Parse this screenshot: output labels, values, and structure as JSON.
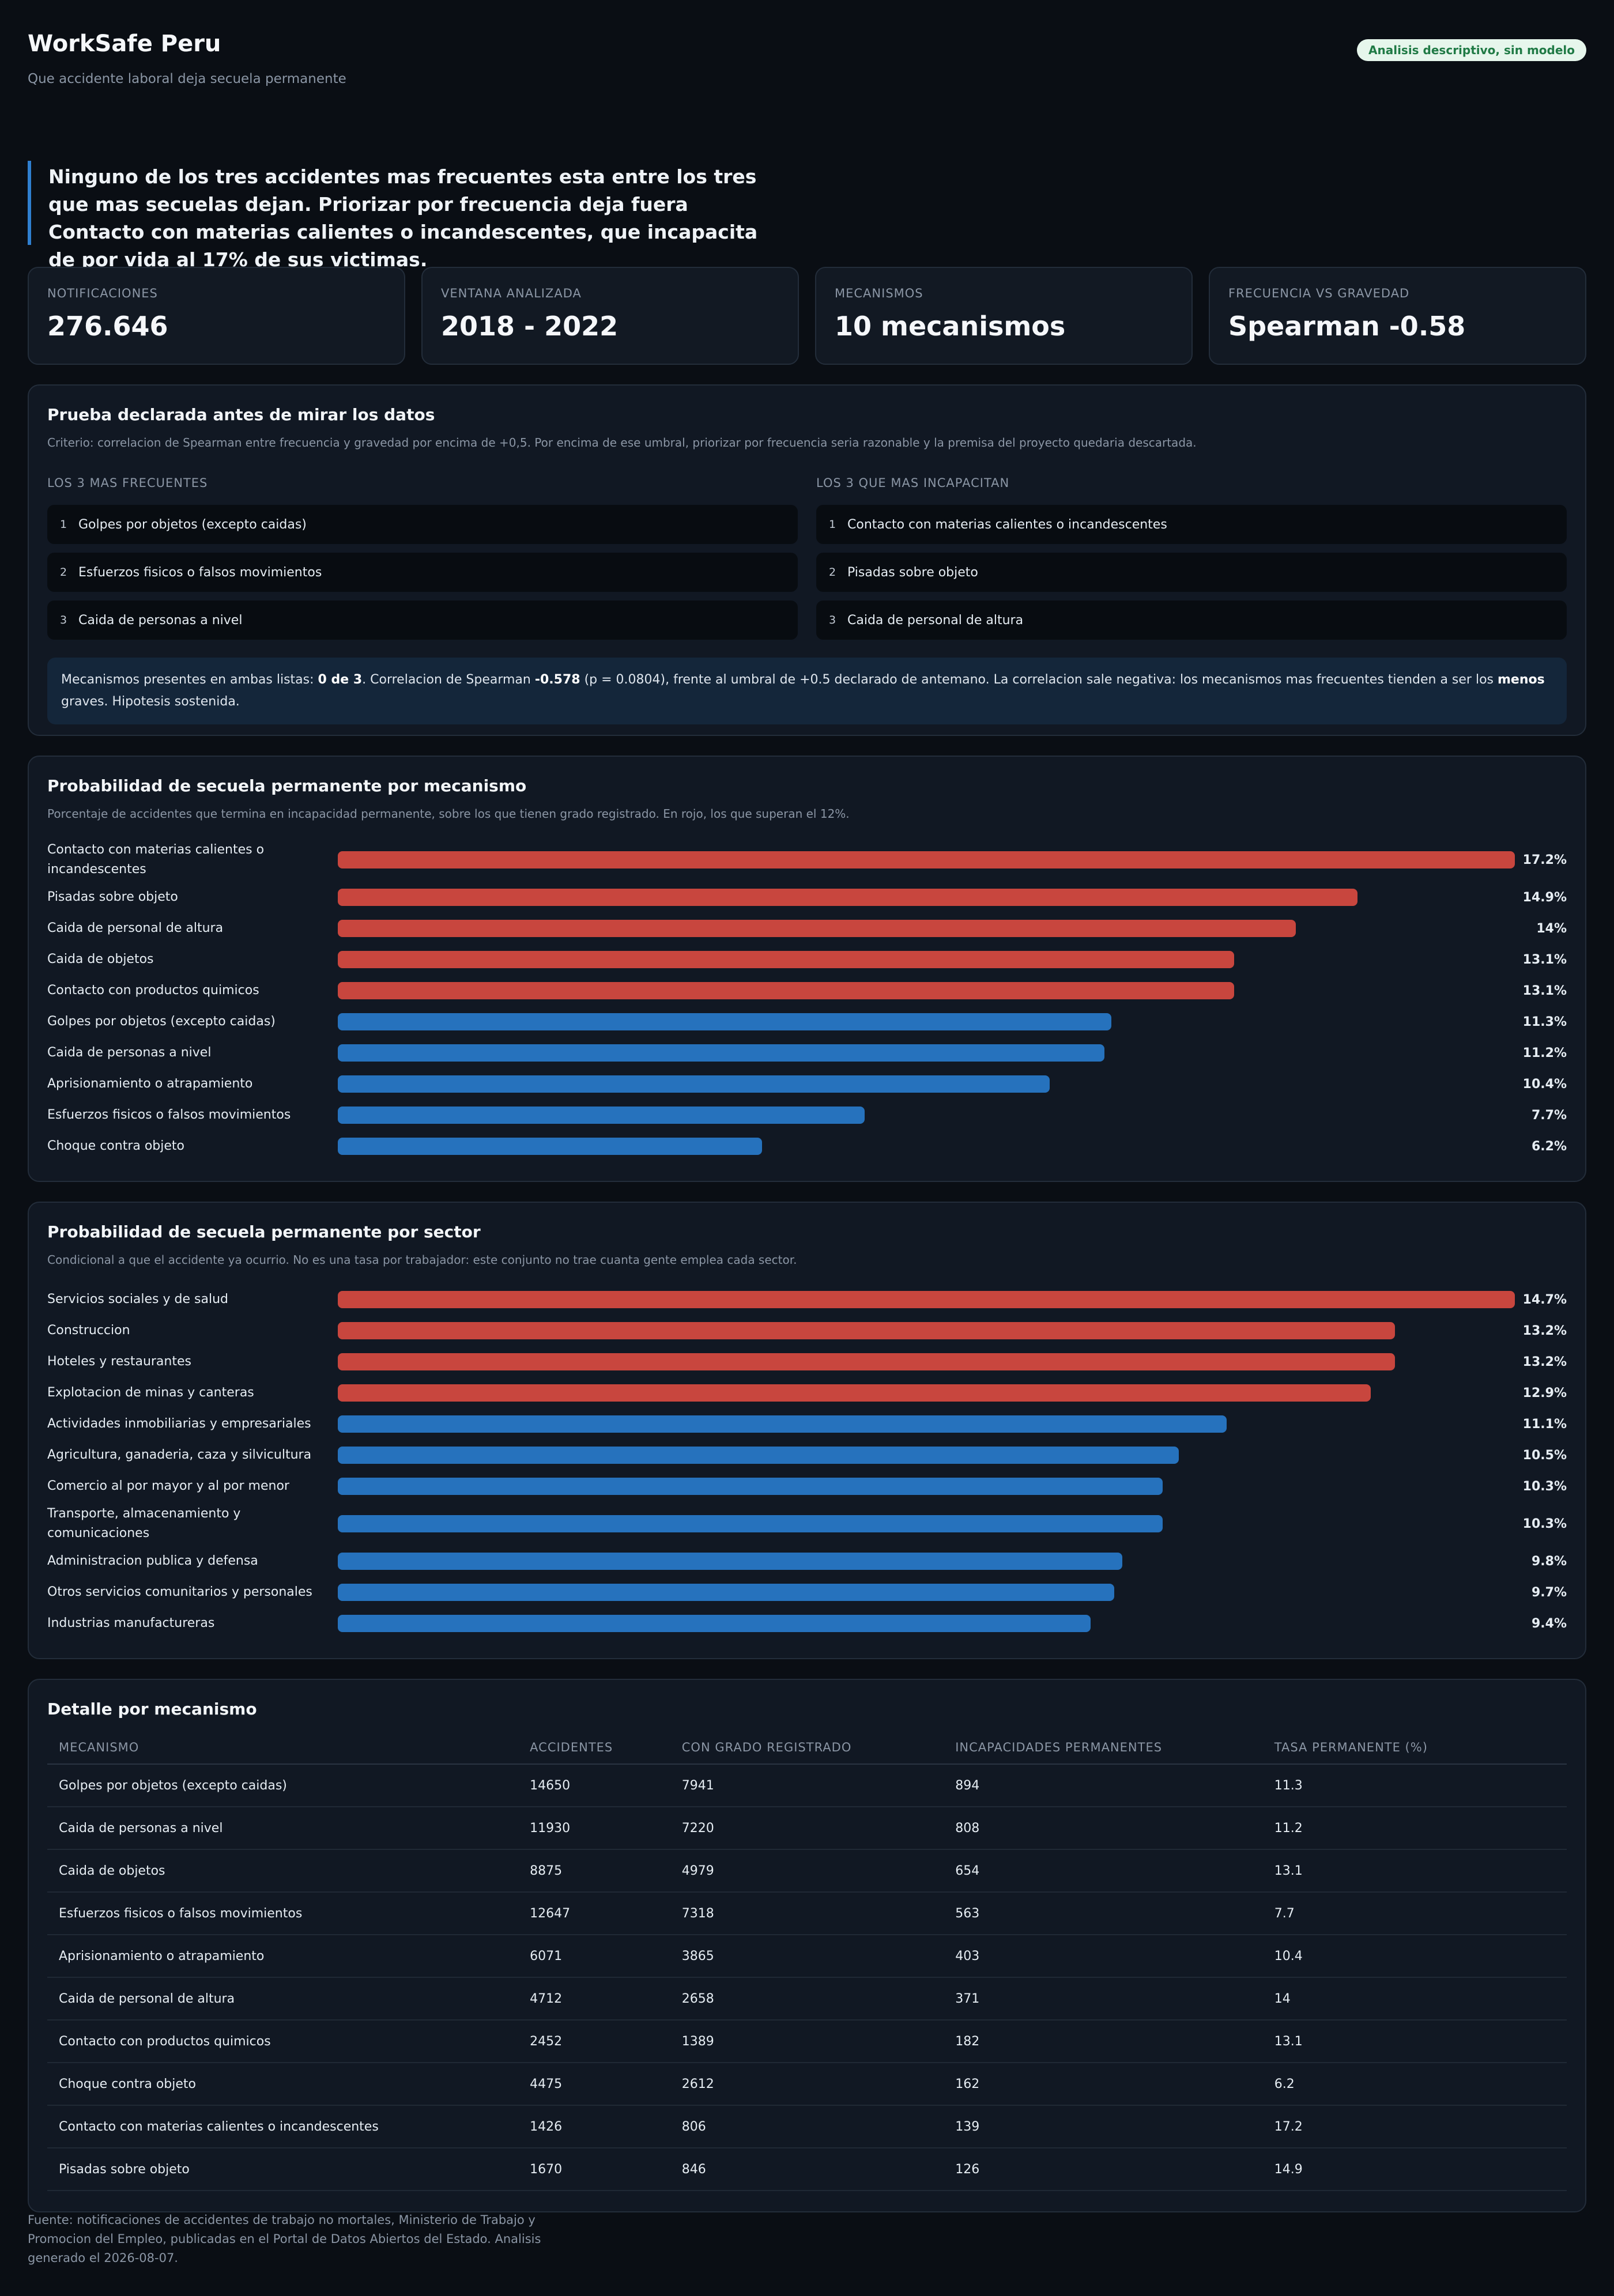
{
  "header": {
    "brand": "WorkSafe Peru",
    "tagline": "Que accidente laboral deja secuela permanente",
    "badge": "Analisis descriptivo, sin modelo"
  },
  "headline": "Ninguno de los tres accidentes mas frecuentes esta entre los tres que mas secuelas dejan. Priorizar por frecuencia deja fuera Contacto con materias calientes o incandescentes, que incapacita de por vida al 17% de sus victimas.",
  "cards": [
    {
      "label": "NOTIFICACIONES",
      "value": "276.646"
    },
    {
      "label": "VENTANA ANALIZADA",
      "value": "2018 - 2022"
    },
    {
      "label": "MECANISMOS",
      "value": "10 mecanismos"
    },
    {
      "label": "FRECUENCIA VS GRAVEDAD",
      "value": "Spearman -0.58"
    }
  ],
  "hypothesis": {
    "title": "Prueba declarada antes de mirar los datos",
    "subtitle": "Criterio: correlacion de Spearman entre frecuencia y gravedad por encima de +0,5. Por encima de ese umbral, priorizar por frecuencia seria razonable y la premisa del proyecto quedaria descartada.",
    "frequent_head": "LOS 3 MAS FRECUENTES",
    "frequent": [
      {
        "num": "1",
        "label": "Golpes por objetos (excepto caidas)"
      },
      {
        "num": "2",
        "label": "Esfuerzos fisicos o falsos movimientos"
      },
      {
        "num": "3",
        "label": "Caida de personas a nivel"
      }
    ],
    "severe_head": "LOS 3 QUE MAS INCAPACITAN",
    "severe": [
      {
        "num": "1",
        "label": "Contacto con materias calientes o incandescentes"
      },
      {
        "num": "2",
        "label": "Pisadas sobre objeto"
      },
      {
        "num": "3",
        "label": "Caida de personal de altura"
      }
    ],
    "result": {
      "t1": "Mecanismos presentes en ambas listas: ",
      "b1": "0 de 3",
      "t2": ". Correlacion de Spearman ",
      "b2": "-0.578",
      "t3": " (p = 0.0804), frente al umbral de +0.5 declarado de antemano. La correlacion sale negativa: los mecanismos mas frecuentes tienden a ser los ",
      "b3": "menos",
      "t4": " graves. Hipotesis sostenida."
    }
  },
  "colors": {
    "above": "#c8463e",
    "below": "#2672bd"
  },
  "chart_data": [
    {
      "type": "bar",
      "orientation": "horizontal",
      "title": "Probabilidad de secuela permanente por mecanismo",
      "subtitle": "Porcentaje de accidentes que termina en incapacidad permanente, sobre los que tienen grado registrado. En rojo, los que superan el 12%.",
      "threshold": 12,
      "categories": [
        "Contacto con materias calientes o incandescentes",
        "Pisadas sobre objeto",
        "Caida de personal de altura",
        "Caida de objetos",
        "Contacto con productos quimicos",
        "Golpes por objetos (excepto caidas)",
        "Caida de personas a nivel",
        "Aprisionamiento o atrapamiento",
        "Esfuerzos fisicos o falsos movimientos",
        "Choque contra objeto"
      ],
      "values": [
        17.2,
        14.9,
        14,
        13.1,
        13.1,
        11.3,
        11.2,
        10.4,
        7.7,
        6.2
      ],
      "labels": [
        "17.2%",
        "14.9%",
        "14%",
        "13.1%",
        "13.1%",
        "11.3%",
        "11.2%",
        "10.4%",
        "7.7%",
        "6.2%"
      ]
    },
    {
      "type": "bar",
      "orientation": "horizontal",
      "title": "Probabilidad de secuela permanente por sector",
      "subtitle": "Condicional a que el accidente ya ocurrio. No es una tasa por trabajador: este conjunto no trae cuanta gente emplea cada sector.",
      "threshold": 12,
      "categories": [
        "Servicios sociales y de salud",
        "Construccion",
        "Hoteles y restaurantes",
        "Explotacion de minas y canteras",
        "Actividades inmobiliarias y empresariales",
        "Agricultura, ganaderia, caza y silvicultura",
        "Comercio al por mayor y al por menor",
        "Transporte, almacenamiento y comunicaciones",
        "Administracion publica y defensa",
        "Otros servicios comunitarios y personales",
        "Industrias manufactureras"
      ],
      "values": [
        14.7,
        13.2,
        13.2,
        12.9,
        11.1,
        10.5,
        10.3,
        10.3,
        9.8,
        9.7,
        9.4
      ],
      "labels": [
        "14.7%",
        "13.2%",
        "13.2%",
        "12.9%",
        "11.1%",
        "10.5%",
        "10.3%",
        "10.3%",
        "9.8%",
        "9.7%",
        "9.4%"
      ]
    },
    {
      "type": "table",
      "title": "Detalle por mecanismo",
      "columns": [
        "MECANISMO",
        "ACCIDENTES",
        "CON GRADO REGISTRADO",
        "INCAPACIDADES PERMANENTES",
        "TASA PERMANENTE (%)"
      ],
      "rows": [
        [
          "Golpes por objetos (excepto caidas)",
          "14650",
          "7941",
          "894",
          "11.3"
        ],
        [
          "Caida de personas a nivel",
          "11930",
          "7220",
          "808",
          "11.2"
        ],
        [
          "Caida de objetos",
          "8875",
          "4979",
          "654",
          "13.1"
        ],
        [
          "Esfuerzos fisicos o falsos movimientos",
          "12647",
          "7318",
          "563",
          "7.7"
        ],
        [
          "Aprisionamiento o atrapamiento",
          "6071",
          "3865",
          "403",
          "10.4"
        ],
        [
          "Caida de personal de altura",
          "4712",
          "2658",
          "371",
          "14"
        ],
        [
          "Contacto con productos quimicos",
          "2452",
          "1389",
          "182",
          "13.1"
        ],
        [
          "Choque contra objeto",
          "4475",
          "2612",
          "162",
          "6.2"
        ],
        [
          "Contacto con materias calientes o incandescentes",
          "1426",
          "806",
          "139",
          "17.2"
        ],
        [
          "Pisadas sobre objeto",
          "1670",
          "846",
          "126",
          "14.9"
        ]
      ]
    }
  ],
  "footer": "Fuente: notificaciones de accidentes de trabajo no mortales, Ministerio de Trabajo y Promocion del Empleo, publicadas en el Portal de Datos Abiertos del Estado. Analisis generado el 2026-08-07."
}
